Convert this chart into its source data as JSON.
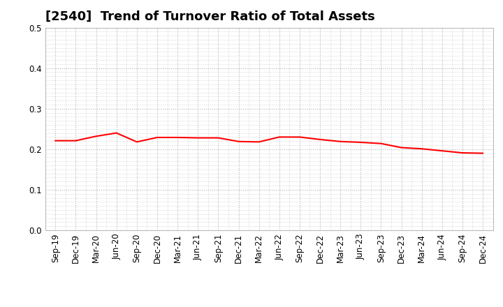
{
  "title": "[2540]  Trend of Turnover Ratio of Total Assets",
  "x_labels": [
    "Sep-19",
    "Dec-19",
    "Mar-20",
    "Jun-20",
    "Sep-20",
    "Dec-20",
    "Mar-21",
    "Jun-21",
    "Sep-21",
    "Dec-21",
    "Mar-22",
    "Jun-22",
    "Sep-22",
    "Dec-22",
    "Mar-23",
    "Jun-23",
    "Sep-23",
    "Dec-23",
    "Mar-24",
    "Jun-24",
    "Sep-24",
    "Dec-24"
  ],
  "values": [
    0.221,
    0.221,
    0.232,
    0.24,
    0.218,
    0.229,
    0.229,
    0.228,
    0.228,
    0.219,
    0.218,
    0.23,
    0.23,
    0.224,
    0.219,
    0.217,
    0.214,
    0.204,
    0.201,
    0.196,
    0.191,
    0.19
  ],
  "line_color": "#FF0000",
  "line_width": 1.5,
  "ylim": [
    0.0,
    0.5
  ],
  "yticks": [
    0.0,
    0.1,
    0.2,
    0.3,
    0.4,
    0.5
  ],
  "grid_color": "#aaaaaa",
  "background_color": "#ffffff",
  "title_fontsize": 13,
  "tick_fontsize": 8.5
}
